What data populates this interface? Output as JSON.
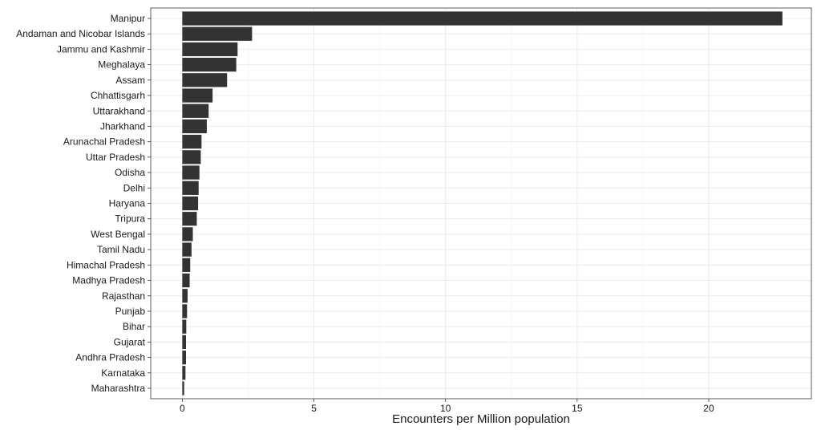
{
  "chart_data": {
    "type": "bar",
    "orientation": "horizontal",
    "title": "",
    "xlabel": "Encounters per Million population",
    "ylabel": "",
    "xlim": [
      -1.2,
      23.9
    ],
    "x_ticks": [
      0,
      5,
      10,
      15,
      20
    ],
    "grid": true,
    "bar_color": "#333333",
    "categories": [
      "Manipur",
      "Andaman and Nicobar Islands",
      "Jammu and Kashmir",
      "Meghalaya",
      "Assam",
      "Chhattisgarh",
      "Uttarakhand",
      "Jharkhand",
      "Arunachal Pradesh",
      "Uttar Pradesh",
      "Odisha",
      "Delhi",
      "Haryana",
      "Tripura",
      "West Bengal",
      "Tamil Nadu",
      "Himachal Pradesh",
      "Madhya Pradesh",
      "Rajasthan",
      "Punjab",
      "Bihar",
      "Gujarat",
      "Andhra Pradesh",
      "Karnataka",
      "Maharashtra"
    ],
    "values": [
      22.8,
      2.65,
      2.1,
      2.05,
      1.7,
      1.15,
      1.0,
      0.93,
      0.73,
      0.7,
      0.65,
      0.62,
      0.6,
      0.55,
      0.4,
      0.35,
      0.3,
      0.28,
      0.2,
      0.18,
      0.15,
      0.14,
      0.14,
      0.12,
      0.07
    ]
  }
}
